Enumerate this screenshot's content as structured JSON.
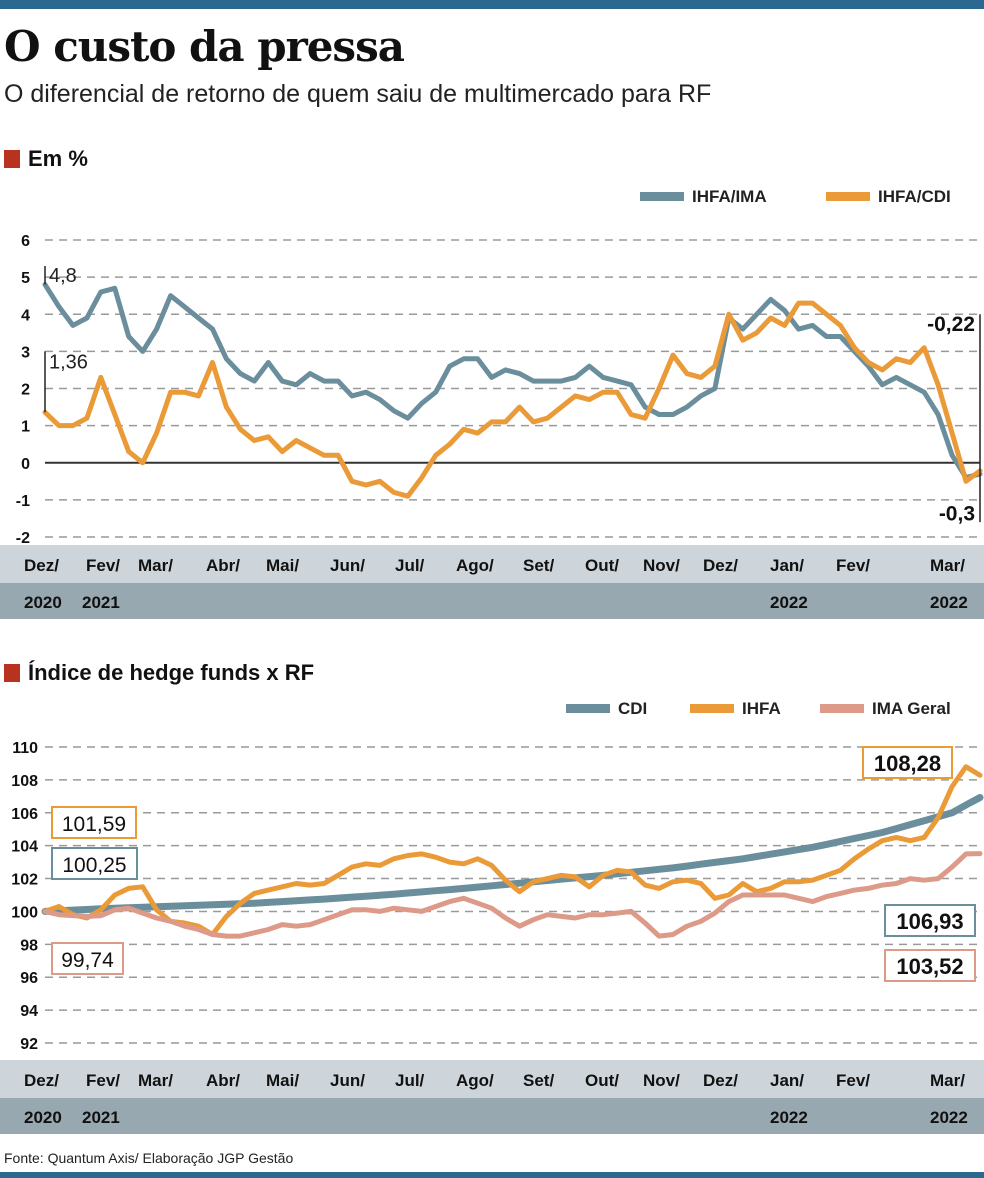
{
  "title": "O custo da pressa",
  "subtitle": "O diferencial de retorno de quem saiu de multimercado para RF",
  "source": "Fonte:  Quantum Axis/ Elaboração JGP Gestão",
  "colors": {
    "blue": "#6b8e9d",
    "orange": "#ea9a37",
    "pink": "#de9a89",
    "accent": "#b8321f",
    "band_light": "#cdd5da",
    "band_dark": "#98a8b0",
    "stripe": "#2b6890"
  },
  "x_dates": [
    "2020-12-04",
    "2020-12-11",
    "2020-12-18",
    "2020-12-25",
    "2021-01-01",
    "2021-01-08",
    "2021-01-15",
    "2021-01-22",
    "2021-01-29",
    "2021-02-05",
    "2021-02-12",
    "2021-02-19",
    "2021-02-26",
    "2021-03-05",
    "2021-03-12",
    "2021-03-19",
    "2021-03-26",
    "2021-04-02",
    "2021-04-09",
    "2021-04-16",
    "2021-04-23",
    "2021-04-30",
    "2021-05-07",
    "2021-05-14",
    "2021-05-21",
    "2021-05-28",
    "2021-06-04",
    "2021-06-11",
    "2021-06-18",
    "2021-06-25",
    "2021-07-02",
    "2021-07-09",
    "2021-07-16",
    "2021-07-23",
    "2021-07-30",
    "2021-08-06",
    "2021-08-13",
    "2021-08-20",
    "2021-08-27",
    "2021-09-03",
    "2021-09-10",
    "2021-09-17",
    "2021-09-24",
    "2021-10-01",
    "2021-10-08",
    "2021-10-15",
    "2021-10-22",
    "2021-10-29",
    "2021-11-05",
    "2021-11-12",
    "2021-11-19",
    "2021-11-26",
    "2021-12-03",
    "2021-12-10",
    "2021-12-17",
    "2021-12-24",
    "2021-12-31",
    "2022-01-07",
    "2022-01-14",
    "2022-01-21",
    "2022-01-28",
    "2022-02-04",
    "2022-02-11",
    "2022-02-18",
    "2022-02-25",
    "2022-03-04",
    "2022-03-11",
    "2022-03-18"
  ],
  "months": [
    "Dez/",
    "Fev/",
    "Mar/",
    "Abr/",
    "Mai/",
    "Jun/",
    "Jul/",
    "Ago/",
    "Set/",
    "Out/",
    "Nov/",
    "Dez/",
    "Jan/",
    "Fev/",
    "Mar/"
  ],
  "years": [
    "2020",
    "2021",
    "2022",
    "2022"
  ],
  "chart_data": [
    {
      "type": "line",
      "section_title": "Em %",
      "ylim": [
        -2,
        6
      ],
      "yticks": [
        6,
        5,
        4,
        3,
        2,
        1,
        0,
        -1,
        -2
      ],
      "grid": true,
      "legend": "top-right",
      "series": [
        {
          "name": "IHFA/IMA",
          "color": "#6b8e9d",
          "values": [
            4.8,
            4.2,
            3.7,
            3.9,
            4.6,
            4.7,
            3.4,
            3.0,
            3.6,
            4.5,
            4.2,
            3.9,
            3.6,
            2.8,
            2.4,
            2.2,
            2.7,
            2.2,
            2.1,
            2.4,
            2.2,
            2.2,
            1.8,
            1.9,
            1.7,
            1.4,
            1.2,
            1.6,
            1.9,
            2.6,
            2.8,
            2.8,
            2.3,
            2.5,
            2.4,
            2.2,
            2.2,
            2.2,
            2.3,
            2.6,
            2.3,
            2.2,
            2.1,
            1.5,
            1.3,
            1.3,
            1.5,
            1.8,
            2.0,
            3.9,
            3.6,
            4.0,
            4.4,
            4.1,
            3.6,
            3.7,
            3.4,
            3.4,
            3.0,
            2.6,
            2.1,
            2.3,
            2.1,
            1.9,
            1.3,
            0.2,
            -0.4,
            -0.3
          ]
        },
        {
          "name": "IHFA/CDI",
          "color": "#ea9a37",
          "values": [
            1.36,
            1.0,
            1.0,
            1.2,
            2.3,
            1.3,
            0.3,
            0.0,
            0.8,
            1.9,
            1.9,
            1.8,
            2.7,
            1.5,
            0.9,
            0.6,
            0.7,
            0.3,
            0.6,
            0.4,
            0.2,
            0.2,
            -0.5,
            -0.6,
            -0.5,
            -0.8,
            -0.9,
            -0.4,
            0.2,
            0.5,
            0.9,
            0.8,
            1.1,
            1.1,
            1.5,
            1.1,
            1.2,
            1.5,
            1.8,
            1.7,
            1.9,
            1.9,
            1.3,
            1.2,
            2.0,
            2.9,
            2.4,
            2.3,
            2.6,
            4.0,
            3.3,
            3.5,
            3.9,
            3.7,
            4.3,
            4.3,
            4.0,
            3.7,
            3.1,
            2.7,
            2.5,
            2.8,
            2.7,
            3.1,
            2.1,
            0.8,
            -0.5,
            -0.22
          ]
        }
      ],
      "annotations": {
        "ima_start": "4,8",
        "cdi_start": "1,36",
        "cdi_end": "-0,22",
        "ima_end": "-0,3"
      }
    },
    {
      "type": "line",
      "section_title": "Índice de hedge funds x RF",
      "ylim": [
        92,
        110
      ],
      "yticks": [
        110,
        108,
        106,
        104,
        102,
        100,
        98,
        96,
        94,
        92
      ],
      "grid": true,
      "legend": "top-right",
      "series": [
        {
          "name": "CDI",
          "color": "#6b8e9d",
          "values": [
            100.0,
            100.04,
            100.08,
            100.12,
            100.16,
            100.2,
            100.23,
            100.26,
            100.29,
            100.32,
            100.35,
            100.38,
            100.41,
            100.44,
            100.47,
            100.5,
            100.55,
            100.6,
            100.65,
            100.7,
            100.75,
            100.81,
            100.87,
            100.93,
            100.99,
            101.05,
            101.12,
            101.19,
            101.26,
            101.33,
            101.4,
            101.48,
            101.56,
            101.64,
            101.72,
            101.8,
            101.88,
            101.96,
            102.04,
            102.12,
            102.2,
            102.29,
            102.38,
            102.47,
            102.56,
            102.65,
            102.76,
            102.87,
            102.98,
            103.09,
            103.2,
            103.34,
            103.48,
            103.62,
            103.76,
            103.9,
            104.08,
            104.26,
            104.44,
            104.62,
            104.8,
            105.04,
            105.28,
            105.52,
            105.76,
            106.0,
            106.47,
            106.93
          ]
        },
        {
          "name": "IHFA",
          "color": "#ea9a37",
          "values": [
            100.0,
            100.3,
            99.8,
            99.6,
            100.1,
            101.0,
            101.4,
            101.5,
            100.1,
            99.4,
            99.3,
            99.1,
            98.6,
            99.7,
            100.5,
            101.1,
            101.3,
            101.5,
            101.7,
            101.6,
            101.7,
            102.2,
            102.7,
            102.9,
            102.8,
            103.2,
            103.4,
            103.5,
            103.3,
            103.0,
            102.9,
            103.2,
            102.8,
            101.9,
            101.2,
            101.8,
            102.0,
            102.2,
            102.1,
            101.5,
            102.2,
            102.5,
            102.4,
            101.6,
            101.4,
            101.8,
            101.9,
            101.7,
            100.8,
            101.0,
            101.7,
            101.2,
            101.4,
            101.8,
            101.8,
            101.9,
            102.2,
            102.5,
            103.2,
            103.8,
            104.3,
            104.5,
            104.3,
            104.5,
            105.7,
            107.6,
            108.8,
            108.28
          ]
        },
        {
          "name": "IMA Geral",
          "color": "#de9a89",
          "values": [
            100.0,
            99.8,
            99.75,
            99.7,
            99.74,
            100.1,
            100.2,
            99.9,
            99.6,
            99.4,
            99.1,
            98.9,
            98.6,
            98.5,
            98.5,
            98.7,
            98.9,
            99.2,
            99.1,
            99.2,
            99.5,
            99.8,
            100.1,
            100.1,
            100.0,
            100.2,
            100.1,
            100.0,
            100.3,
            100.6,
            100.8,
            100.5,
            100.2,
            99.6,
            99.1,
            99.5,
            99.8,
            99.7,
            99.6,
            99.8,
            99.8,
            99.9,
            100.0,
            99.3,
            98.5,
            98.6,
            99.1,
            99.4,
            99.9,
            100.6,
            101.0,
            101.0,
            101.0,
            101.0,
            100.8,
            100.6,
            100.9,
            101.1,
            101.3,
            101.4,
            101.6,
            101.7,
            102.0,
            101.9,
            102.0,
            102.7,
            103.5,
            103.52
          ]
        }
      ],
      "annotations": {
        "ihfa_max": "101,59",
        "cdi_mark": "100,25",
        "ima_mark": "99,74",
        "ihfa_end": "108,28",
        "cdi_end": "106,93",
        "ima_end": "103,52"
      }
    }
  ]
}
